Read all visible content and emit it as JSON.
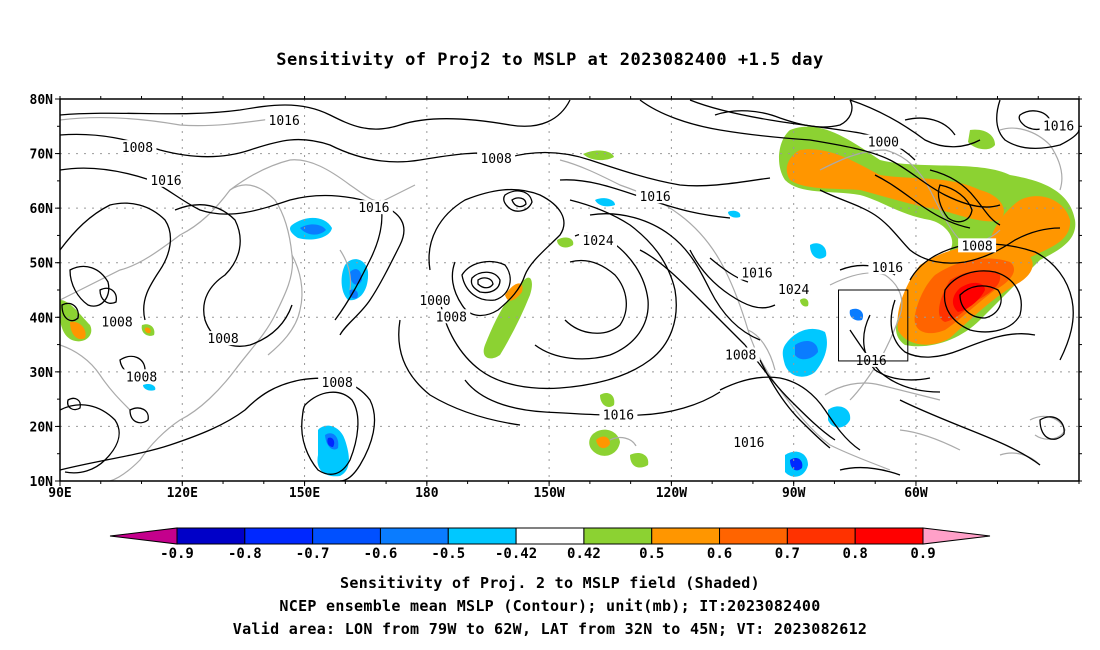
{
  "title": "Sensitivity of Proj2 to MSLP at 2023082400 +1.5 day",
  "map": {
    "lat_labels": [
      "10N",
      "20N",
      "30N",
      "40N",
      "50N",
      "60N",
      "70N",
      "80N"
    ],
    "lon_labels": [
      "90E",
      "120E",
      "150E",
      "180",
      "150W",
      "120W",
      "90W",
      "60W"
    ],
    "lon_range": [
      90,
      340
    ],
    "lat_range": [
      10,
      80
    ],
    "box": {
      "lon": [
        281,
        298
      ],
      "lat": [
        32,
        45
      ]
    },
    "grid": "dotted"
  },
  "contours": [
    {
      "label": "1016",
      "lon": 145,
      "lat": 76
    },
    {
      "label": "1008",
      "lon": 109,
      "lat": 71
    },
    {
      "label": "1016",
      "lon": 116,
      "lat": 65
    },
    {
      "label": "1016",
      "lon": 167,
      "lat": 60
    },
    {
      "label": "1008",
      "lon": 197,
      "lat": 69
    },
    {
      "label": "1016",
      "lon": 236,
      "lat": 62
    },
    {
      "label": "1024",
      "lon": 222,
      "lat": 54
    },
    {
      "label": "1000",
      "lon": 292,
      "lat": 72
    },
    {
      "label": "1016",
      "lon": 335,
      "lat": 75
    },
    {
      "label": "1008",
      "lon": 315,
      "lat": 53
    },
    {
      "label": "1016",
      "lon": 293,
      "lat": 49
    },
    {
      "label": "1016",
      "lon": 261,
      "lat": 48
    },
    {
      "label": "1024",
      "lon": 270,
      "lat": 45
    },
    {
      "label": "1000",
      "lon": 182,
      "lat": 43
    },
    {
      "label": "1008",
      "lon": 186,
      "lat": 40
    },
    {
      "label": "1008",
      "lon": 104,
      "lat": 39
    },
    {
      "label": "1008",
      "lon": 130,
      "lat": 36
    },
    {
      "label": "1008",
      "lon": 110,
      "lat": 29
    },
    {
      "label": "1008",
      "lon": 158,
      "lat": 28
    },
    {
      "label": "1008",
      "lon": 257,
      "lat": 33
    },
    {
      "label": "1016",
      "lon": 227,
      "lat": 22
    },
    {
      "label": "1016",
      "lon": 289,
      "lat": 32
    },
    {
      "label": "1016",
      "lon": 259,
      "lat": 17
    }
  ],
  "colorbar": {
    "colors": [
      "#c4008c",
      "#0000c8",
      "#0028ff",
      "#0050ff",
      "#0a7cff",
      "#00c8ff",
      "#ffffff",
      "#8cd232",
      "#ff9600",
      "#ff6400",
      "#ff3200",
      "#ff0000",
      "#ffa0c8"
    ],
    "labels": [
      "-0.9",
      "-0.8",
      "-0.7",
      "-0.6",
      "-0.5",
      "-0.42",
      "0.42",
      "0.5",
      "0.6",
      "0.7",
      "0.8",
      "0.9"
    ]
  },
  "caption": [
    "Sensitivity of Proj. 2 to MSLP field (Shaded)",
    "NCEP ensemble mean MSLP (Contour); unit(mb); IT:2023082400",
    "Valid area: LON from 79W to 62W, LAT from 32N to 45N; VT: 2023082612"
  ]
}
